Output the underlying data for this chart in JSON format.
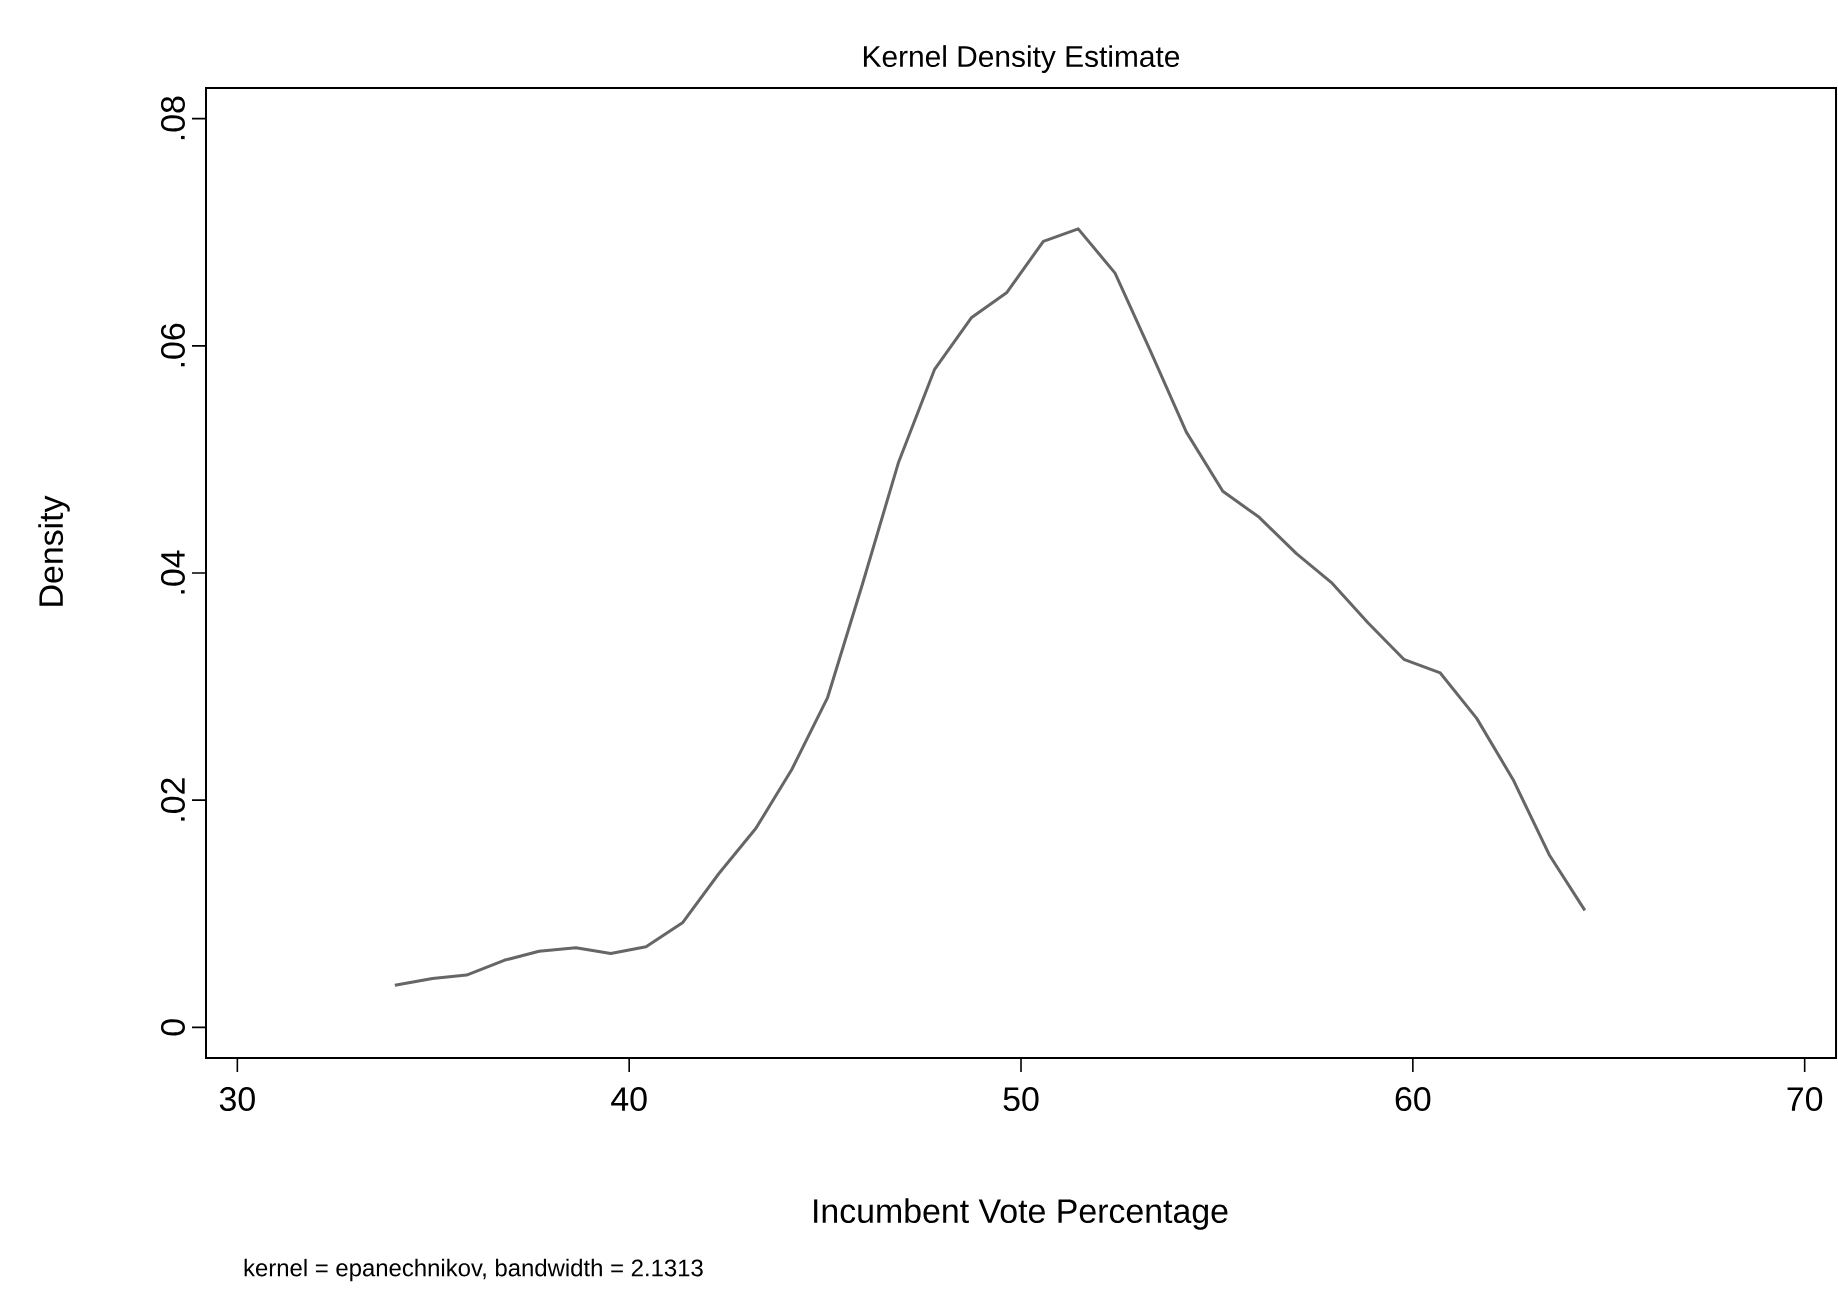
{
  "chart_data": {
    "type": "line",
    "title": "Kernel Density Estimate",
    "xlabel": "Incumbent Vote Percentage",
    "ylabel": "Density",
    "annotations": [
      "kernel = epanechnikov, bandwidth = 2.1313"
    ],
    "x": [
      34.02,
      34.98,
      35.85,
      36.81,
      37.7,
      38.64,
      39.53,
      40.43,
      41.36,
      42.28,
      43.23,
      44.15,
      45.06,
      45.96,
      46.87,
      47.79,
      48.74,
      49.64,
      50.57,
      51.46,
      52.4,
      53.31,
      54.22,
      55.15,
      56.08,
      57.03,
      57.94,
      58.86,
      59.77,
      60.7,
      61.63,
      62.56,
      63.48,
      64.39
    ],
    "series": [
      {
        "color": "#666666",
        "values": [
          0.0037,
          0.0043,
          0.0046,
          0.0059,
          0.0067,
          0.007,
          0.0065,
          0.0071,
          0.0092,
          0.0135,
          0.0175,
          0.0227,
          0.029,
          0.0391,
          0.0497,
          0.0579,
          0.0625,
          0.0647,
          0.0692,
          0.0703,
          0.0664,
          0.0595,
          0.0524,
          0.0472,
          0.0449,
          0.0417,
          0.0391,
          0.0356,
          0.0324,
          0.0312,
          0.0272,
          0.0218,
          0.0152,
          0.0103
        ]
      }
    ],
    "xlim": [
      29.2,
      70.8
    ],
    "ylim": [
      -0.0027,
      0.0827
    ],
    "xticks": [
      30,
      40,
      50,
      60,
      70
    ],
    "yticks": [
      {
        "value": 0,
        "label": "0"
      },
      {
        "value": 0.02,
        "label": ".02"
      },
      {
        "value": 0.04,
        "label": ".04"
      },
      {
        "value": 0.06,
        "label": ".06"
      },
      {
        "value": 0.08,
        "label": ".08"
      }
    ],
    "marker": "none",
    "line_style": "solid"
  }
}
